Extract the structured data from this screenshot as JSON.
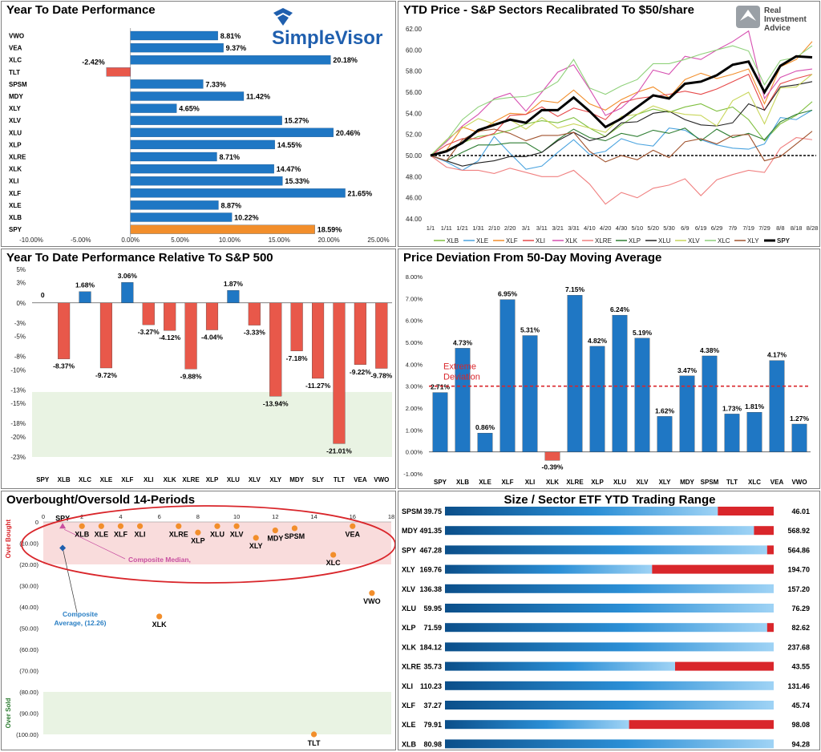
{
  "colors": {
    "blue": "#1f77c4",
    "red": "#e8584a",
    "orange": "#f28e2b",
    "green_zone": "#e9f3e3",
    "pink_zone": "#f9dcdc"
  },
  "branding": {
    "simplevisor": "SimpleVisor",
    "ria_line1": "Real",
    "ria_line2": "Investment",
    "ria_line3": "Advice"
  },
  "chart_data": [
    {
      "id": "ytd",
      "type": "bar",
      "orientation": "horizontal",
      "title": "Year To Date Performance",
      "categories": [
        "VWO",
        "VEA",
        "XLC",
        "TLT",
        "SPSM",
        "MDY",
        "XLY",
        "XLV",
        "XLU",
        "XLP",
        "XLRE",
        "XLK",
        "XLI",
        "XLF",
        "XLE",
        "XLB",
        "SPY"
      ],
      "values": [
        8.81,
        9.37,
        20.18,
        -2.42,
        7.33,
        11.42,
        4.65,
        15.27,
        20.46,
        14.55,
        8.71,
        14.47,
        15.33,
        21.65,
        8.87,
        10.22,
        18.59
      ],
      "labels": [
        "8.81%",
        "9.37%",
        "20.18%",
        "-2.42%",
        "7.33%",
        "11.42%",
        "4.65%",
        "15.27%",
        "20.46%",
        "14.55%",
        "8.71%",
        "14.47%",
        "15.33%",
        "21.65%",
        "8.87%",
        "10.22%",
        "18.59%"
      ],
      "xlim": [
        -10,
        25
      ],
      "xticks": [
        "-10.00%",
        "-5.00%",
        "0.00%",
        "5.00%",
        "10.00%",
        "15.00%",
        "20.00%",
        "25.00%"
      ],
      "highlight": "SPY"
    },
    {
      "id": "ytdprice",
      "type": "line",
      "title": "YTD Price - S&P Sectors Recalibrated To $50/share",
      "xticks": [
        "1/1",
        "1/11",
        "1/21",
        "1/31",
        "2/10",
        "2/20",
        "3/1",
        "3/11",
        "3/21",
        "3/31",
        "4/10",
        "4/20",
        "4/30",
        "5/10",
        "5/20",
        "5/30",
        "6/9",
        "6/19",
        "6/29",
        "7/9",
        "7/19",
        "7/29",
        "8/8",
        "8/18",
        "8/28"
      ],
      "ylim": [
        44,
        62
      ],
      "yticks": [
        "44.00",
        "46.00",
        "48.00",
        "50.00",
        "52.00",
        "54.00",
        "56.00",
        "58.00",
        "60.00",
        "62.00"
      ],
      "reference": 50,
      "series": [
        {
          "name": "XLB",
          "color": "#7fbf3f",
          "values": [
            50,
            50.5,
            51.2,
            51.8,
            52,
            52.4,
            53,
            53.3,
            53.1,
            53.6,
            52.6,
            51.8,
            52.9,
            53.9,
            54.4,
            54.1,
            54.6,
            54.9,
            54.2,
            54.6,
            53.4,
            51.4,
            53,
            53.8,
            55.1
          ]
        },
        {
          "name": "XLE",
          "color": "#4aa3df",
          "values": [
            50,
            49.4,
            48.6,
            49.5,
            51.8,
            50.2,
            48.7,
            49,
            50.3,
            51.5,
            50.1,
            50.4,
            51.6,
            51.1,
            50.9,
            52.6,
            52.4,
            51.5,
            51,
            50.7,
            50.6,
            51.1,
            53.6,
            53.4,
            54.3
          ]
        },
        {
          "name": "XLF",
          "color": "#f28e2b",
          "values": [
            50,
            50.5,
            52.7,
            52.2,
            53.2,
            54,
            53.9,
            55.2,
            55,
            56.2,
            54.9,
            54.3,
            55.3,
            56,
            56.5,
            55.5,
            57.2,
            57.8,
            57.3,
            57.7,
            58.2,
            54.9,
            58.4,
            59.1,
            60.8
          ]
        },
        {
          "name": "XLI",
          "color": "#e64949",
          "values": [
            50,
            51,
            51.6,
            51.6,
            52.1,
            53.8,
            53.9,
            54.6,
            53.7,
            54.5,
            54.1,
            53.4,
            55,
            55.4,
            55.6,
            55.8,
            56.1,
            55.8,
            56.3,
            57,
            57.7,
            54.3,
            56.8,
            57.3,
            57.7
          ]
        },
        {
          "name": "XLK",
          "color": "#d64fb0",
          "values": [
            50,
            51.3,
            52.8,
            53.9,
            55.4,
            55.9,
            54.2,
            56,
            57.9,
            58.6,
            56.3,
            53.8,
            54.5,
            55.9,
            58.1,
            57.7,
            59.4,
            59.1,
            60,
            60.8,
            61.8,
            55.4,
            57.4,
            58,
            58.2
          ]
        },
        {
          "name": "XLRE",
          "color": "#f08080",
          "values": [
            50,
            48.9,
            48.6,
            48.6,
            48.3,
            48.8,
            48.4,
            48,
            48,
            48.6,
            47.3,
            45.4,
            46.5,
            46,
            46.9,
            47.2,
            47.8,
            46.2,
            47.7,
            48.2,
            48.6,
            48.4,
            50.7,
            51.7,
            51.5
          ]
        },
        {
          "name": "XLP",
          "color": "#2e7d32",
          "values": [
            50,
            49.5,
            50.3,
            51,
            51,
            51.2,
            51.2,
            50.3,
            51.5,
            52.5,
            51.7,
            51.4,
            52.1,
            51.8,
            52.4,
            52.1,
            52.6,
            51.4,
            52.5,
            51.7,
            52.1,
            51.5,
            53.2,
            53.9,
            54.3
          ]
        },
        {
          "name": "XLU",
          "color": "#222222",
          "values": [
            50,
            49.5,
            49,
            49.3,
            49.5,
            49.9,
            49.9,
            50.3,
            51.4,
            52.2,
            51.4,
            51.8,
            53.1,
            53.2,
            54,
            54.2,
            53.4,
            52.9,
            52.8,
            53.1,
            54.9,
            54.3,
            56.5,
            56.7,
            57
          ]
        },
        {
          "name": "XLV",
          "color": "#c8d65a",
          "values": [
            50,
            51.5,
            52.6,
            53.5,
            53,
            53.4,
            52.5,
            53.6,
            52.6,
            53,
            52.6,
            52.2,
            53.7,
            53.9,
            54.7,
            54.2,
            53.9,
            53.8,
            52.8,
            55.2,
            56,
            53,
            56.4,
            56.5,
            57.7
          ]
        },
        {
          "name": "XLC",
          "color": "#8fd17a",
          "values": [
            50,
            51.4,
            53.4,
            54.6,
            55.3,
            55.5,
            55.6,
            56.1,
            57,
            59.1,
            56.4,
            55.8,
            56.6,
            57.2,
            58.7,
            58.7,
            59.1,
            59.6,
            60,
            60.4,
            59.9,
            56.7,
            59,
            59.3,
            60.4
          ]
        },
        {
          "name": "XLY",
          "color": "#a0522d",
          "values": [
            50,
            49.5,
            51.5,
            52.3,
            52.5,
            52.1,
            51.4,
            51.9,
            51.9,
            52.2,
            50.4,
            49.4,
            50,
            49.6,
            50.5,
            49.8,
            51.3,
            51.6,
            51.1,
            51.9,
            52,
            49.5,
            49.9,
            51.1,
            52.3
          ]
        },
        {
          "name": "SPY",
          "color": "#000000",
          "values": [
            50,
            50.4,
            51.2,
            52.4,
            52.9,
            53.4,
            53.1,
            54.3,
            54.3,
            55.5,
            54.2,
            52.7,
            53.5,
            54.6,
            55.7,
            55.4,
            56.8,
            57,
            57.6,
            58.6,
            58.9,
            56,
            58.5,
            59.4,
            59.3
          ]
        }
      ]
    },
    {
      "id": "relative",
      "type": "bar",
      "title": "Year To Date Performance Relative To S&P 500",
      "categories": [
        "SPY",
        "XLB",
        "XLC",
        "XLE",
        "XLF",
        "XLI",
        "XLK",
        "XLRE",
        "XLP",
        "XLU",
        "XLV",
        "XLY",
        "MDY",
        "SLY",
        "TLT",
        "VEA",
        "VWO"
      ],
      "values": [
        0,
        -8.37,
        1.68,
        -9.72,
        3.06,
        -3.27,
        -4.12,
        -9.88,
        -4.04,
        1.87,
        -3.33,
        -13.94,
        -7.18,
        -11.27,
        -21.01,
        -9.22,
        -9.78
      ],
      "labels": [
        "0",
        "-8.37%",
        "1.68%",
        "-9.72%",
        "3.06%",
        "-3.27%",
        "-4.12%",
        "-9.88%",
        "-4.04%",
        "1.87%",
        "-3.33%",
        "-13.94%",
        "-7.18%",
        "-11.27%",
        "-21.01%",
        "-9.22%",
        "-9.78%"
      ],
      "ylim": [
        -23,
        5
      ],
      "yticks": [
        5,
        3,
        0,
        -3,
        -5,
        -8,
        -10,
        -13,
        -15,
        -18,
        -20,
        -23
      ],
      "ytick_labels": [
        "5%",
        "3%",
        "0%",
        "-3%",
        "-5%",
        "-8%",
        "-10%",
        "-13%",
        "-15%",
        "-18%",
        "-20%",
        "-23%"
      ],
      "shaded_zone": [
        -23,
        -13.3
      ]
    },
    {
      "id": "deviation",
      "type": "bar",
      "title": "Price Deviation From 50-Day Moving Average",
      "categories": [
        "SPY",
        "XLB",
        "XLE",
        "XLF",
        "XLI",
        "XLK",
        "XLRE",
        "XLP",
        "XLU",
        "XLV",
        "XLY",
        "MDY",
        "SPSM",
        "TLT",
        "XLC",
        "VEA",
        "VWO"
      ],
      "values": [
        2.71,
        4.73,
        0.86,
        6.95,
        5.31,
        -0.39,
        7.15,
        4.82,
        6.24,
        5.19,
        1.62,
        3.47,
        4.38,
        1.73,
        1.81,
        4.17,
        1.27
      ],
      "labels": [
        "2.71%",
        "4.73%",
        "0.86%",
        "6.95%",
        "5.31%",
        "-0.39%",
        "7.15%",
        "4.82%",
        "6.24%",
        "5.19%",
        "1.62%",
        "3.47%",
        "4.38%",
        "1.73%",
        "1.81%",
        "4.17%",
        "1.27%"
      ],
      "ylim": [
        -1,
        8
      ],
      "yticks": [
        "-1.00%",
        "0.00%",
        "1.00%",
        "2.00%",
        "3.00%",
        "4.00%",
        "5.00%",
        "6.00%",
        "7.00%",
        "8.00%"
      ],
      "threshold": 3,
      "threshold_label_line1": "Extreme",
      "threshold_label_line2": "Deviation"
    },
    {
      "id": "obos",
      "type": "scatter",
      "title": "Overbought/Oversold 14-Periods",
      "xlim": [
        0,
        18
      ],
      "xticks": [
        "0",
        "2",
        "4",
        "6",
        "8",
        "10",
        "12",
        "14",
        "16",
        "18"
      ],
      "ylim": [
        -100,
        0
      ],
      "yticks": [
        "0",
        "(10.00)",
        "(20.00)",
        "(30.00)",
        "(40.00)",
        "(50.00)",
        "(60.00)",
        "(70.00)",
        "(80.00)",
        "(90.00)",
        "(100.00)"
      ],
      "overbought_label": "Over Bought",
      "oversold_label": "Over Sold",
      "points": [
        {
          "label": "SPY",
          "x": 1,
          "y": -2,
          "marker": "triangle",
          "color": "#c84fa0"
        },
        {
          "label": "XLB",
          "x": 2,
          "y": -2
        },
        {
          "label": "XLE",
          "x": 3,
          "y": -2
        },
        {
          "label": "XLF",
          "x": 4,
          "y": -2
        },
        {
          "label": "XLI",
          "x": 5,
          "y": -2
        },
        {
          "label": "XLRE",
          "x": 7,
          "y": -2
        },
        {
          "label": "XLP",
          "x": 8,
          "y": -5
        },
        {
          "label": "XLU",
          "x": 9,
          "y": -2
        },
        {
          "label": "XLV",
          "x": 10,
          "y": -2
        },
        {
          "label": "XLY",
          "x": 11,
          "y": -7.5
        },
        {
          "label": "MDY",
          "x": 12,
          "y": -4
        },
        {
          "label": "SPSM",
          "x": 13,
          "y": -3
        },
        {
          "label": "XLC",
          "x": 15,
          "y": -15.5
        },
        {
          "label": "VEA",
          "x": 16,
          "y": -2
        },
        {
          "label": "VWO",
          "x": 17,
          "y": -33.5
        },
        {
          "label": "XLK",
          "x": 6,
          "y": -44.5
        },
        {
          "label": "TLT",
          "x": 14,
          "y": -100
        }
      ],
      "composite_average": {
        "x": 1,
        "y": -12.26,
        "label_line1": "Composite",
        "label_line2": "Average,  (12.26)"
      },
      "composite_median": {
        "label": "Composite Median,"
      }
    },
    {
      "id": "range",
      "type": "bar",
      "title": "Size / Sector ETF YTD Trading Range",
      "rows": [
        {
          "name": "SPSM",
          "low": "39.75",
          "high": "46.01",
          "position": 0.83
        },
        {
          "name": "MDY",
          "low": "491.35",
          "high": "568.92",
          "position": 0.94
        },
        {
          "name": "SPY",
          "low": "467.28",
          "high": "564.86",
          "position": 0.98
        },
        {
          "name": "XLY",
          "low": "169.76",
          "high": "194.70",
          "position": 0.63
        },
        {
          "name": "XLV",
          "low": "136.38",
          "high": "157.20",
          "position": 1.0
        },
        {
          "name": "XLU",
          "low": "59.95",
          "high": "76.29",
          "position": 1.0
        },
        {
          "name": "XLP",
          "low": "71.59",
          "high": "82.62",
          "position": 0.98
        },
        {
          "name": "XLK",
          "low": "184.12",
          "high": "237.68",
          "position": 1.0
        },
        {
          "name": "XLRE",
          "low": "35.73",
          "high": "43.55",
          "position": 0.7
        },
        {
          "name": "XLI",
          "low": "110.23",
          "high": "131.46",
          "position": 1.0
        },
        {
          "name": "XLF",
          "low": "37.27",
          "high": "45.74",
          "position": 1.0
        },
        {
          "name": "XLE",
          "low": "79.91",
          "high": "98.08",
          "position": 0.56
        },
        {
          "name": "XLB",
          "low": "80.98",
          "high": "94.28",
          "position": 1.0
        }
      ]
    }
  ]
}
